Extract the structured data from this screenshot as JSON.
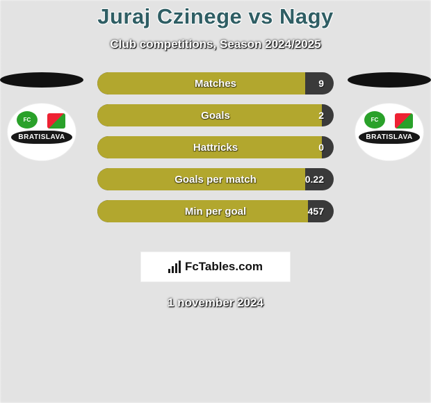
{
  "title": "Juraj Czinege vs Nagy",
  "subtitle": "Club competitions, Season 2024/2025",
  "date": "1 november 2024",
  "branding": "FcTables.com",
  "colors": {
    "title": "#2f5e64",
    "bar_track": "#3a3a3a",
    "bar_fill_olive": "#b2a72e",
    "bar_fill_light": "#e8e8e8",
    "background": "#e8e8e8"
  },
  "players": {
    "left": {
      "name": "Juraj Czinege",
      "club_label": "BRATISLAVA",
      "club_fc": "FC"
    },
    "right": {
      "name": "Nagy",
      "club_label": "BRATISLAVA",
      "club_fc": "FC"
    }
  },
  "stats": [
    {
      "label": "Matches",
      "right_value": "9",
      "left_fill_pct": 88,
      "left_fill_color": "#b2a72e",
      "right_fill_pct": 0,
      "right_fill_color": "#e8e8e8",
      "show_left_value": false
    },
    {
      "label": "Goals",
      "right_value": "2",
      "left_fill_pct": 95,
      "left_fill_color": "#b2a72e",
      "right_fill_pct": 0,
      "right_fill_color": "#e8e8e8",
      "show_left_value": false
    },
    {
      "label": "Hattricks",
      "right_value": "0",
      "left_fill_pct": 95,
      "left_fill_color": "#b2a72e",
      "right_fill_pct": 0,
      "right_fill_color": "#e8e8e8",
      "show_left_value": false
    },
    {
      "label": "Goals per match",
      "right_value": "0.22",
      "left_fill_pct": 88,
      "left_fill_color": "#b2a72e",
      "right_fill_pct": 0,
      "right_fill_color": "#e8e8e8",
      "show_left_value": false
    },
    {
      "label": "Min per goal",
      "right_value": "457",
      "left_fill_pct": 89,
      "left_fill_color": "#b2a72e",
      "right_fill_pct": 0,
      "right_fill_color": "#e8e8e8",
      "show_left_value": false
    }
  ]
}
